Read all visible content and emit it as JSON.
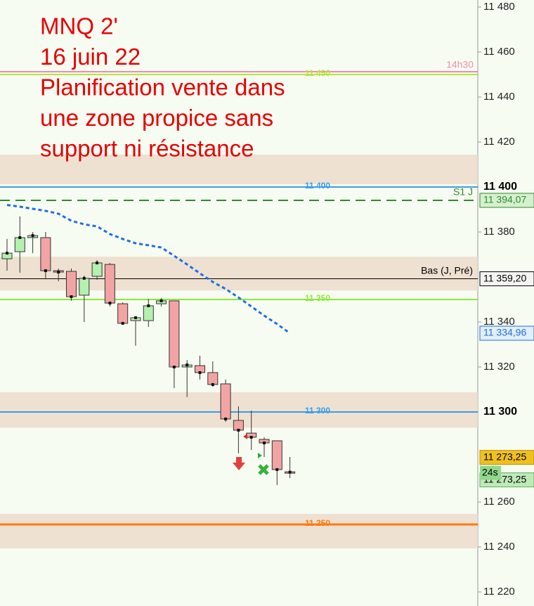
{
  "chart_data": {
    "type": "candlestick",
    "title_lines": [
      "MNQ 2'",
      "16 juin 22",
      "Planification vente dans",
      "une zone propice sans",
      "support ni résistance"
    ],
    "ylim": [
      11213.75,
      11483.125
    ],
    "yticks": [
      {
        "value": 11480,
        "label": "11 480"
      },
      {
        "value": 11460,
        "label": "11 460"
      },
      {
        "value": 11440,
        "label": "11 440"
      },
      {
        "value": 11420,
        "label": "11 420"
      },
      {
        "value": 11380,
        "label": "11 380"
      },
      {
        "value": 11340,
        "label": "11 340"
      },
      {
        "value": 11320,
        "label": "11 320"
      },
      {
        "value": 11260,
        "label": "11 260"
      },
      {
        "value": 11240,
        "label": "11 240"
      },
      {
        "value": 11220,
        "label": "11 220"
      }
    ],
    "candles": {
      "open": [
        11368.1,
        11371.25,
        11377.5,
        11377.5,
        11362.8,
        11362.5,
        11351.9,
        11360.3,
        11365.6,
        11348.1,
        11340.6,
        11340.6,
        11348.1,
        11349.4,
        11320,
        11320.6,
        11317.5,
        11312.5,
        11296.25,
        11290.6,
        11287.8,
        11287.2,
        11273.4
      ],
      "high": [
        11376.9,
        11386.9,
        11380,
        11380,
        11363.75,
        11363.75,
        11360.6,
        11367.5,
        11366.25,
        11348.75,
        11342.5,
        11350.3,
        11350.6,
        11349.4,
        11323.1,
        11325,
        11322.5,
        11314.4,
        11302.5,
        11300.6,
        11288.75,
        11287.2,
        11280
      ],
      "low": [
        11362.8,
        11361.9,
        11370.6,
        11359,
        11358.1,
        11349.4,
        11340,
        11358.75,
        11346.9,
        11338.75,
        11329.4,
        11337.8,
        11346.9,
        11310.6,
        11306.6,
        11314.4,
        11311.25,
        11295.6,
        11281.6,
        11283.1,
        11280,
        11267.5,
        11270.6
      ],
      "close": [
        11370.6,
        11377.5,
        11378.4,
        11362.8,
        11362.2,
        11351.25,
        11359.4,
        11366.25,
        11348.4,
        11339.4,
        11341.9,
        11347.2,
        11349.4,
        11320,
        11320.9,
        11317.5,
        11312.2,
        11296.9,
        11291.9,
        11288.75,
        11286.25,
        11274.4,
        11273.25
      ]
    },
    "up_color": "#b4f0ae",
    "down_color": "#f2a4a4",
    "moving_average": {
      "color": "#1f6fe0",
      "label": "11 334,96",
      "values": [
        11392.0,
        11391.25,
        11390.3,
        11389.4,
        11388.1,
        11385,
        11383.4,
        11382.5,
        11379.1,
        11376.9,
        11375,
        11374.1,
        11373.1,
        11369.4,
        11365.6,
        11361.6,
        11357.8,
        11354.7,
        11350.9,
        11346.9,
        11342.8,
        11339.1,
        11335
      ]
    },
    "zones": [
      [
        11401.25,
        11414.4
      ],
      [
        11354,
        11369
      ],
      [
        11293,
        11308.75
      ],
      [
        11239.4,
        11254.7
      ]
    ],
    "zone_color": "#ecdccb",
    "levels": [
      {
        "value": 11450,
        "label": "11 450",
        "color": "#b6e43c"
      },
      {
        "value": 11400,
        "label": "11 400",
        "color": "#3a9ee8",
        "axis_label": "11 400"
      },
      {
        "value": 11350,
        "label": "11 350",
        "color": "#8ee83a"
      },
      {
        "value": 11300,
        "label": "11 300",
        "color": "#3a9ee8",
        "axis_label": "11 300"
      },
      {
        "value": 11250,
        "label": "11 250",
        "color": "#ff7a10"
      }
    ],
    "markers": [
      {
        "name": "S1 J",
        "value": 11394.07,
        "label": "11 394,07",
        "color": "#2e8b2e",
        "dash": true
      },
      {
        "name": "Bas (J, Pré)",
        "value": 11359.2,
        "label": "11 359,20",
        "color": "#000000",
        "dash": false
      }
    ],
    "time_marker": {
      "label": "14h30",
      "value": 11451.25,
      "color": "#f08cb0"
    },
    "last_price": {
      "value": 11273.25,
      "labels": [
        "11 273,25",
        "11 273,25"
      ],
      "countdown": "24s"
    }
  }
}
